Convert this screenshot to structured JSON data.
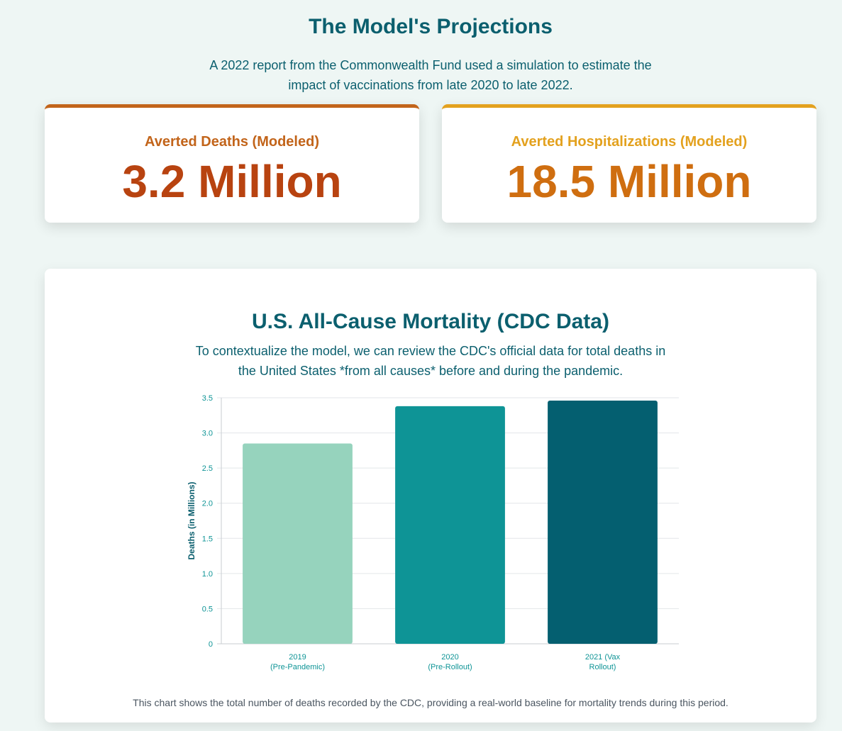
{
  "header": {
    "title": "The Model's Projections",
    "subtitle": "A 2022 report from the Commonwealth Fund used a simulation to estimate the impact of vaccinations from late 2020 to late 2022."
  },
  "stats": [
    {
      "label": "Averted Deaths (Modeled)",
      "value": "3.2 Million"
    },
    {
      "label": "Averted Hospitalizations (Modeled)",
      "value": "18.5 Million"
    }
  ],
  "chart_section": {
    "title": "U.S. All-Cause Mortality (CDC Data)",
    "intro": "To contextualize the model, we can review the CDC's official data for total deaths in the United States *from all causes* before and during the pandemic.",
    "caption": "This chart shows the total number of deaths recorded by the CDC, providing a real-world baseline for mortality trends during this period."
  },
  "chart_data": {
    "type": "bar",
    "categories": [
      [
        "2019",
        "(Pre-Pandemic)"
      ],
      [
        "2020",
        "(Pre-Rollout)"
      ],
      [
        "2021 (Vax",
        "Rollout)"
      ]
    ],
    "values": [
      2.85,
      3.38,
      3.46
    ],
    "colors": [
      "#96d3bd",
      "#0e9496",
      "#045f70"
    ],
    "xlabel": "",
    "ylabel": "Deaths (in Millions)",
    "ylim": [
      0,
      3.5
    ],
    "yticks": [
      {
        "value": 0,
        "label": "0"
      },
      {
        "value": 0.5,
        "label": "0.5"
      },
      {
        "value": 1,
        "label": "1.0"
      },
      {
        "value": 1.5,
        "label": "1.5"
      },
      {
        "value": 2,
        "label": "2.0"
      },
      {
        "value": 2.5,
        "label": "2.5"
      },
      {
        "value": 3,
        "label": "3.0"
      },
      {
        "value": 3.5,
        "label": "3.5"
      }
    ],
    "grid": true,
    "legend": "none"
  },
  "colors": {
    "page_background": "#eef6f4",
    "heading": "#0b5f6e",
    "deaths_accent": "#c2641a",
    "deaths_value": "#b84310",
    "hosp_accent": "#e3a11e",
    "hosp_value": "#cf6e10",
    "tick_text": "#0e9496"
  }
}
